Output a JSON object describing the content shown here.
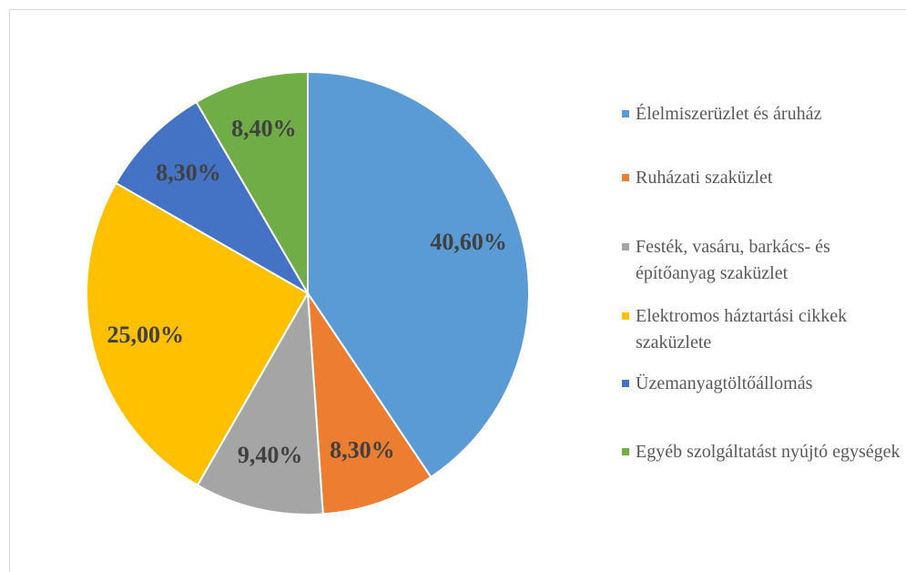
{
  "chart_data": {
    "type": "pie",
    "categories": [
      "Élelmiszerüzlet és áruház",
      "Ruházati szaküzlet",
      "Festék, vasáru, barkács- és építőanyag szaküzlet",
      "Elektromos háztartási cikkek szaküzlete",
      "Üzemanyagtöltőállomás",
      "Egyéb szolgáltatást nyújtó egységek"
    ],
    "values": [
      40.6,
      8.3,
      9.4,
      25.0,
      8.3,
      8.4
    ],
    "value_labels": [
      "40,60%",
      "8,30%",
      "9,40%",
      "25,00%",
      "8,30%",
      "8,40%"
    ],
    "colors": [
      "#5b9bd5",
      "#ed7d31",
      "#a5a5a5",
      "#ffc000",
      "#4472c4",
      "#70ad47"
    ],
    "legend": "right"
  }
}
